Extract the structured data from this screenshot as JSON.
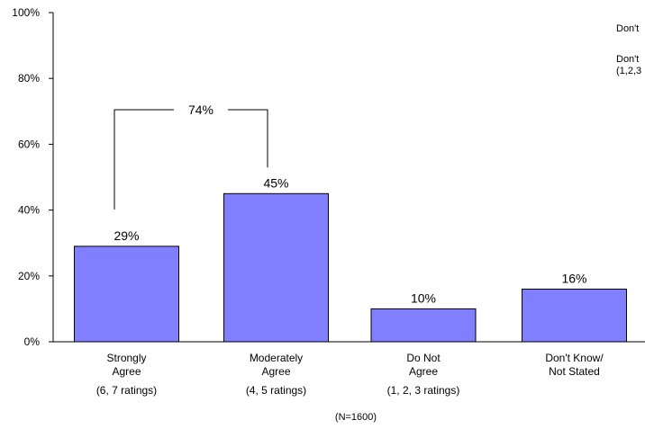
{
  "chart_data": {
    "type": "bar",
    "categories": [
      {
        "line1": "Strongly",
        "line2": "Agree",
        "sub": "(6, 7 ratings)"
      },
      {
        "line1": "Moderately",
        "line2": "Agree",
        "sub": "(4, 5 ratings)"
      },
      {
        "line1": "Do Not",
        "line2": "Agree",
        "sub": "(1, 2, 3 ratings)"
      },
      {
        "line1": "Don't Know/",
        "line2": "Not Stated",
        "sub": ""
      }
    ],
    "values": [
      29,
      45,
      10,
      16
    ],
    "value_labels": [
      "29%",
      "45%",
      "10%",
      "16%"
    ],
    "yticks": [
      "0%",
      "20%",
      "40%",
      "60%",
      "80%",
      "100%"
    ],
    "ylim": [
      0,
      100
    ],
    "bracket": {
      "label": "74%",
      "from_category": 0,
      "to_category": 1
    },
    "base_note": "(N=1600)",
    "side_notes": [
      "Don't",
      "Don't",
      "(1,2,3"
    ],
    "grid": false,
    "bar_color": "#8080ff"
  }
}
